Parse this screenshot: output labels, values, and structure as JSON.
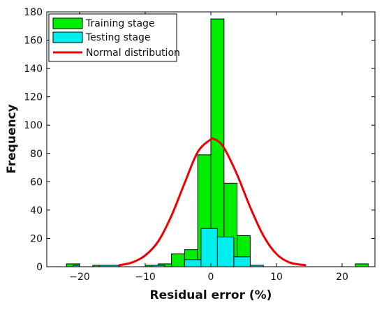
{
  "chart_data": {
    "type": "bar",
    "xlabel": "Residual error (%)",
    "ylabel": "Frequency",
    "xlim": [
      -25,
      25
    ],
    "ylim": [
      0,
      180
    ],
    "xticks": [
      -20,
      -10,
      0,
      10,
      20
    ],
    "yticks": [
      0,
      20,
      40,
      60,
      80,
      100,
      120,
      140,
      160,
      180
    ],
    "legend_position": "top-left",
    "series": [
      {
        "name": "Training stage",
        "kind": "histogram",
        "color": "#00ee00",
        "bins": [
          {
            "x0": -22,
            "x1": -20,
            "value": 2
          },
          {
            "x0": -18,
            "x1": -16,
            "value": 1
          },
          {
            "x0": -16,
            "x1": -14,
            "value": 1
          },
          {
            "x0": -10,
            "x1": -8,
            "value": 1
          },
          {
            "x0": -8,
            "x1": -6,
            "value": 2
          },
          {
            "x0": -6,
            "x1": -4,
            "value": 9
          },
          {
            "x0": -4,
            "x1": -2,
            "value": 12
          },
          {
            "x0": -2,
            "x1": 0,
            "value": 79
          },
          {
            "x0": 0,
            "x1": 2,
            "value": 175
          },
          {
            "x0": 2,
            "x1": 4,
            "value": 59
          },
          {
            "x0": 4,
            "x1": 6,
            "value": 22
          },
          {
            "x0": 6,
            "x1": 8,
            "value": 1
          },
          {
            "x0": 22,
            "x1": 24,
            "value": 2
          }
        ]
      },
      {
        "name": "Testing stage",
        "kind": "histogram",
        "color": "#00eeee",
        "bins": [
          {
            "x0": -21,
            "x1": -20,
            "value": 1
          },
          {
            "x0": -17,
            "x1": -14,
            "value": 1
          },
          {
            "x0": -9,
            "x1": -7,
            "value": 1
          },
          {
            "x0": -4,
            "x1": -1.5,
            "value": 5
          },
          {
            "x0": -1.5,
            "x1": 1,
            "value": 27
          },
          {
            "x0": 1,
            "x1": 3.5,
            "value": 21
          },
          {
            "x0": 3.5,
            "x1": 6,
            "value": 7
          },
          {
            "x0": 6,
            "x1": 8,
            "value": 1
          }
        ]
      },
      {
        "name": "Normal distribution",
        "kind": "line",
        "color": "#ee0000",
        "x": [
          -14,
          -12,
          -10,
          -8,
          -6,
          -4,
          -2,
          0,
          0.5,
          1,
          2,
          4,
          6,
          8,
          10,
          12,
          14.5
        ],
        "y": [
          1,
          3,
          8,
          18,
          36,
          59,
          81,
          90,
          90,
          89,
          84,
          65,
          42,
          22,
          9,
          3,
          1
        ]
      }
    ]
  }
}
